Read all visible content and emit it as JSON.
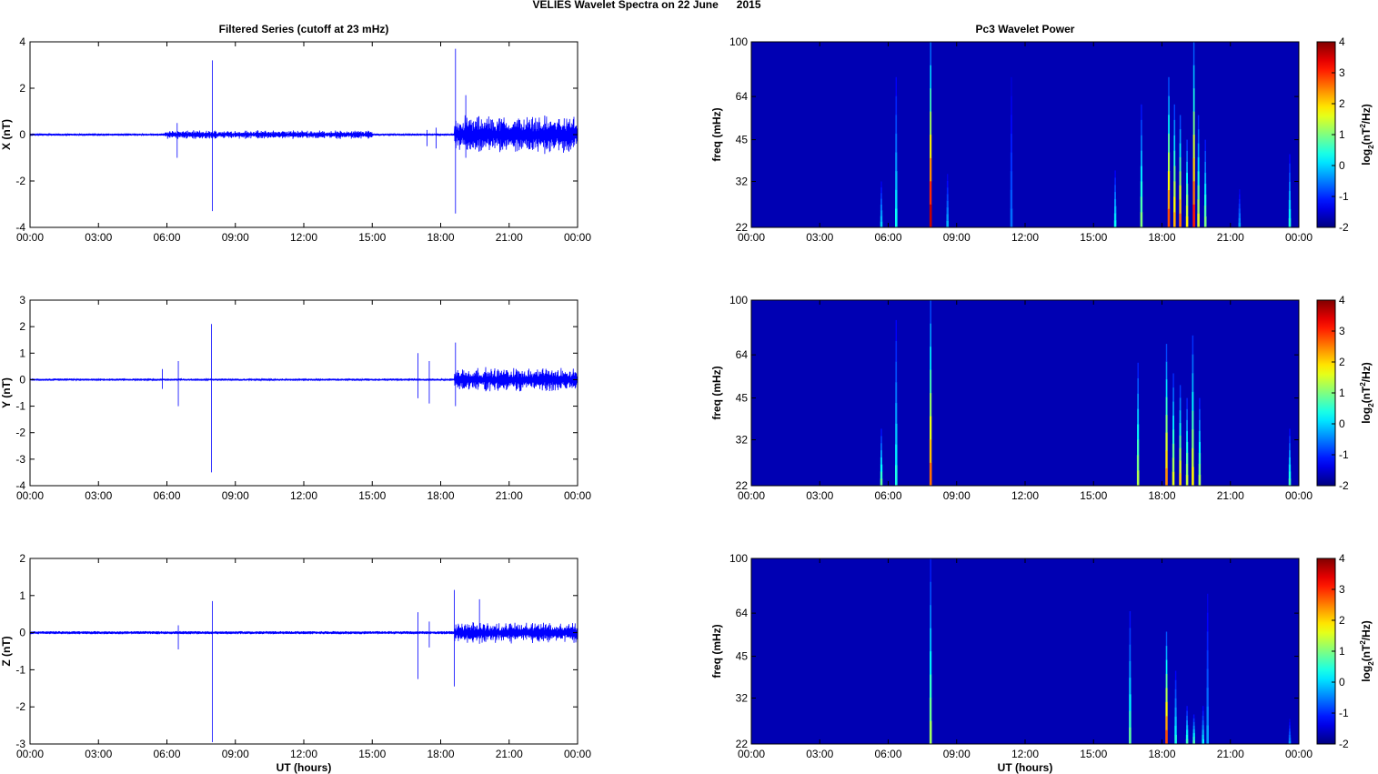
{
  "figure": {
    "suptitle": "VELIES Wavelet Spectra on 22 June      2015",
    "left_title": "Filtered Series (cutoff at 23 mHz)",
    "right_title": "Pc3 Wavelet Power",
    "xlabel": "UT (hours)"
  },
  "colorbar": {
    "label_main": "log",
    "label_sub": "2",
    "label_paren": "(nT",
    "label_sup": "2",
    "label_end": "/Hz)",
    "ticks": [
      "4",
      "3",
      "2",
      "1",
      "0",
      "-1",
      "-2"
    ],
    "range": [
      -2,
      4
    ],
    "colormap": "jet"
  },
  "chart_data": [
    {
      "type": "line",
      "panel": "filtered-X",
      "ylabel": "X (nT)",
      "ylim": [
        -4,
        4
      ],
      "yticks": [
        "4",
        "2",
        "0",
        "-2",
        "-4"
      ],
      "xlim": [
        "00:00",
        "24:00"
      ],
      "xticks": [
        "00:00",
        "03:00",
        "06:00",
        "09:00",
        "12:00",
        "15:00",
        "18:00",
        "21:00",
        "00:00"
      ],
      "color": "#0000ff",
      "baseline_noise_nT": 0.05,
      "active_intervals_hours": [
        [
          5.9,
          15.0,
          0.2
        ],
        [
          18.6,
          24.0,
          0.9
        ]
      ],
      "spikes": [
        {
          "t": 6.45,
          "max": 0.5,
          "min": -1.0
        },
        {
          "t": 7.99,
          "max": 3.2,
          "min": -3.3
        },
        {
          "t": 17.4,
          "max": 0.2,
          "min": -0.5
        },
        {
          "t": 17.8,
          "max": 0.3,
          "min": -0.6
        },
        {
          "t": 18.65,
          "max": 3.7,
          "min": -3.4
        },
        {
          "t": 19.1,
          "max": 1.7,
          "min": -1.0
        }
      ]
    },
    {
      "type": "line",
      "panel": "filtered-Y",
      "ylabel": "Y (nT)",
      "ylim": [
        -4,
        3
      ],
      "yticks": [
        "3",
        "2",
        "1",
        "0",
        "-1",
        "-2",
        "-3",
        "-4"
      ],
      "xlim": [
        "00:00",
        "24:00"
      ],
      "xticks": [
        "00:00",
        "03:00",
        "06:00",
        "09:00",
        "12:00",
        "15:00",
        "18:00",
        "21:00",
        "00:00"
      ],
      "color": "#0000ff",
      "baseline_noise_nT": 0.04,
      "active_intervals_hours": [
        [
          18.6,
          24.0,
          0.5
        ]
      ],
      "spikes": [
        {
          "t": 5.8,
          "max": 0.4,
          "min": -0.35
        },
        {
          "t": 6.5,
          "max": 0.7,
          "min": -1.0
        },
        {
          "t": 7.95,
          "max": 2.1,
          "min": -3.5
        },
        {
          "t": 17.0,
          "max": 1.0,
          "min": -0.7
        },
        {
          "t": 17.5,
          "max": 0.7,
          "min": -0.9
        },
        {
          "t": 18.65,
          "max": 1.4,
          "min": -1.0
        }
      ]
    },
    {
      "type": "line",
      "panel": "filtered-Z",
      "ylabel": "Z (nT)",
      "ylim": [
        -3,
        2
      ],
      "yticks": [
        "2",
        "1",
        "0",
        "-1",
        "-2",
        "-3"
      ],
      "xlim": [
        "00:00",
        "24:00"
      ],
      "xticks": [
        "00:00",
        "03:00",
        "06:00",
        "09:00",
        "12:00",
        "15:00",
        "18:00",
        "21:00",
        "00:00"
      ],
      "color": "#0000ff",
      "baseline_noise_nT": 0.04,
      "active_intervals_hours": [
        [
          18.6,
          24.0,
          0.3
        ]
      ],
      "spikes": [
        {
          "t": 6.5,
          "max": 0.2,
          "min": -0.45
        },
        {
          "t": 7.99,
          "max": 0.85,
          "min": -2.95
        },
        {
          "t": 17.0,
          "max": 0.55,
          "min": -1.25
        },
        {
          "t": 17.5,
          "max": 0.3,
          "min": -0.4
        },
        {
          "t": 18.6,
          "max": 1.15,
          "min": -1.45
        },
        {
          "t": 19.7,
          "max": 0.9,
          "min": -0.3
        }
      ]
    },
    {
      "type": "heatmap",
      "panel": "wavelet-X",
      "ylabel": "freq (mHz)",
      "ylim": [
        22,
        100
      ],
      "yticks": [
        "100",
        "64",
        "45",
        "32",
        "22"
      ],
      "xticks": [
        "00:00",
        "03:00",
        "06:00",
        "09:00",
        "12:00",
        "15:00",
        "18:00",
        "21:00",
        "00:00"
      ],
      "background_log2": -1.7,
      "streaks": [
        {
          "t": 5.7,
          "top": 32,
          "peak": 0.0
        },
        {
          "t": 6.35,
          "top": 75,
          "peak": 0.3
        },
        {
          "t": 7.86,
          "top": 100,
          "peak": 3.6
        },
        {
          "t": 8.6,
          "top": 34,
          "peak": -0.2
        },
        {
          "t": 11.4,
          "top": 75,
          "peak": -0.6
        },
        {
          "t": 15.95,
          "top": 35,
          "peak": 0.3
        },
        {
          "t": 17.1,
          "top": 60,
          "peak": 1.0
        },
        {
          "t": 18.3,
          "top": 75,
          "peak": 2.8
        },
        {
          "t": 18.55,
          "top": 60,
          "peak": 2.2
        },
        {
          "t": 18.8,
          "top": 55,
          "peak": 2.6
        },
        {
          "t": 19.1,
          "top": 45,
          "peak": 1.8
        },
        {
          "t": 19.4,
          "top": 100,
          "peak": 3.1
        },
        {
          "t": 19.6,
          "top": 55,
          "peak": 1.5
        },
        {
          "t": 19.9,
          "top": 45,
          "peak": 1.0
        },
        {
          "t": 21.4,
          "top": 30,
          "peak": -0.3
        },
        {
          "t": 23.6,
          "top": 40,
          "peak": 0.4
        }
      ]
    },
    {
      "type": "heatmap",
      "panel": "wavelet-Y",
      "ylabel": "freq (mHz)",
      "ylim": [
        22,
        100
      ],
      "yticks": [
        "100",
        "64",
        "45",
        "32",
        "22"
      ],
      "xticks": [
        "00:00",
        "03:00",
        "06:00",
        "09:00",
        "12:00",
        "15:00",
        "18:00",
        "21:00",
        "00:00"
      ],
      "background_log2": -1.7,
      "streaks": [
        {
          "t": 5.7,
          "top": 35,
          "peak": 0.8
        },
        {
          "t": 6.35,
          "top": 85,
          "peak": 0.4
        },
        {
          "t": 7.86,
          "top": 100,
          "peak": 2.6
        },
        {
          "t": 16.95,
          "top": 60,
          "peak": 1.3
        },
        {
          "t": 18.2,
          "top": 70,
          "peak": 2.4
        },
        {
          "t": 18.5,
          "top": 55,
          "peak": 1.6
        },
        {
          "t": 18.8,
          "top": 50,
          "peak": 2.0
        },
        {
          "t": 19.1,
          "top": 45,
          "peak": 1.4
        },
        {
          "t": 19.35,
          "top": 75,
          "peak": 1.8
        },
        {
          "t": 19.65,
          "top": 45,
          "peak": 1.2
        },
        {
          "t": 23.6,
          "top": 35,
          "peak": 0.6
        }
      ]
    },
    {
      "type": "heatmap",
      "panel": "wavelet-Z",
      "ylabel": "freq (mHz)",
      "ylim": [
        22,
        100
      ],
      "yticks": [
        "100",
        "64",
        "45",
        "32",
        "22"
      ],
      "xticks": [
        "00:00",
        "03:00",
        "06:00",
        "09:00",
        "12:00",
        "15:00",
        "18:00",
        "21:00",
        "00:00"
      ],
      "background_log2": -1.7,
      "streaks": [
        {
          "t": 7.86,
          "top": 100,
          "peak": 1.2
        },
        {
          "t": 16.6,
          "top": 65,
          "peak": 0.8
        },
        {
          "t": 18.2,
          "top": 55,
          "peak": 2.8
        },
        {
          "t": 18.6,
          "top": 40,
          "peak": 0.4
        },
        {
          "t": 19.1,
          "top": 30,
          "peak": 0.6
        },
        {
          "t": 19.4,
          "top": 28,
          "peak": 0.7
        },
        {
          "t": 19.8,
          "top": 30,
          "peak": 0.2
        },
        {
          "t": 20.0,
          "top": 75,
          "peak": -0.3
        },
        {
          "t": 23.6,
          "top": 27,
          "peak": -0.4
        }
      ]
    }
  ]
}
